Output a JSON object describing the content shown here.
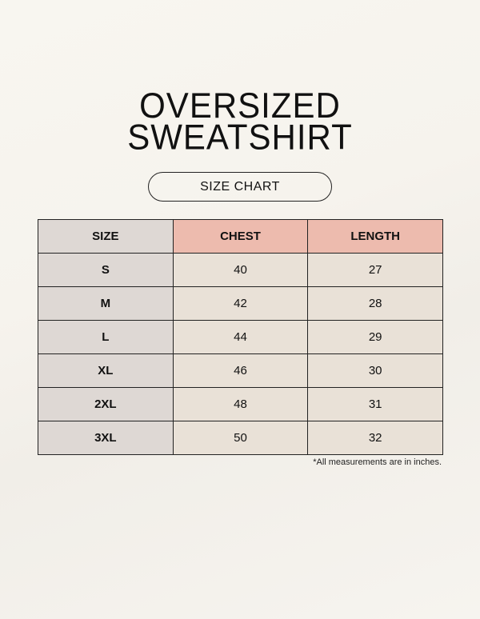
{
  "title": {
    "line1": "OVERSIZED",
    "line2": "SWEATSHIRT"
  },
  "subtitle": "SIZE CHART",
  "table": {
    "headers": [
      "SIZE",
      "CHEST",
      "LENGTH"
    ],
    "rows": [
      [
        "S",
        "40",
        "27"
      ],
      [
        "M",
        "42",
        "28"
      ],
      [
        "L",
        "44",
        "29"
      ],
      [
        "XL",
        "46",
        "30"
      ],
      [
        "2XL",
        "48",
        "31"
      ],
      [
        "3XL",
        "50",
        "32"
      ]
    ]
  },
  "note": "*All measurements are in inches.",
  "colors": {
    "size_column": "#ded8d4",
    "header_accent": "#edbbae",
    "cell": "#e9e1d7"
  }
}
